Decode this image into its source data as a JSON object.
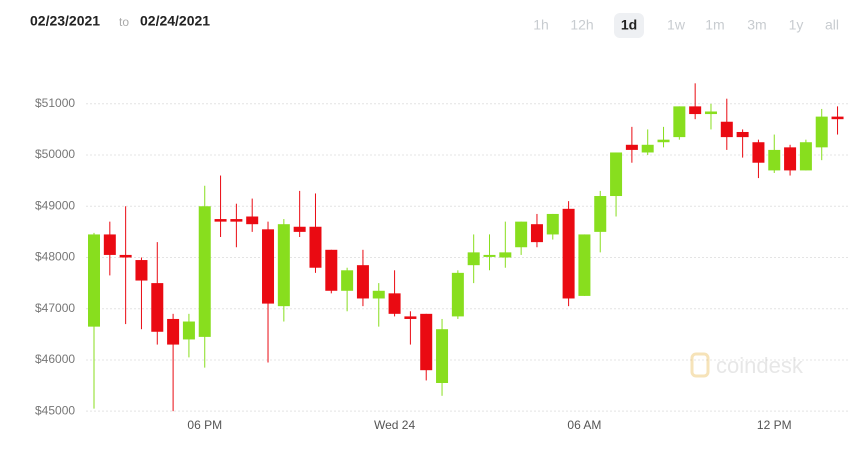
{
  "header": {
    "start_date": "02/23/2021",
    "separator": "to",
    "end_date": "02/24/2021",
    "ranges": [
      "1h",
      "12h",
      "1d",
      "1w",
      "1m",
      "3m",
      "1y",
      "all"
    ],
    "active_range": "1d"
  },
  "chart_data": {
    "type": "candlestick",
    "categories": [
      null,
      null,
      null,
      null,
      null,
      null,
      null,
      "06 PM",
      null,
      null,
      null,
      null,
      null,
      null,
      null,
      null,
      null,
      null,
      null,
      "Wed 24",
      null,
      null,
      null,
      null,
      null,
      null,
      null,
      null,
      null,
      null,
      null,
      "06 AM",
      null,
      null,
      null,
      null,
      null,
      null,
      null,
      null,
      null,
      null,
      null,
      "12 PM",
      null,
      null,
      null,
      null
    ],
    "open": [
      46650,
      48450,
      48050,
      47950,
      47500,
      46800,
      46400,
      46450,
      48750,
      48750,
      48800,
      48550,
      47050,
      48600,
      48600,
      48150,
      47350,
      47850,
      47200,
      47300,
      46850,
      46900,
      45550,
      46850,
      47850,
      48050,
      48000,
      48200,
      48650,
      48450,
      48950,
      47250,
      48500,
      49200,
      50200,
      50050,
      50250,
      50350,
      50950,
      50800,
      50650,
      50450,
      50250,
      49700,
      50150,
      49700,
      50150,
      50750
    ],
    "high": [
      48480,
      48700,
      49000,
      48000,
      48300,
      46900,
      46900,
      49400,
      49600,
      49050,
      49150,
      48700,
      48750,
      49300,
      49250,
      48150,
      47800,
      48150,
      47500,
      47750,
      46950,
      46900,
      46800,
      47750,
      48450,
      48450,
      48700,
      48700,
      48850,
      48850,
      49100,
      48450,
      49300,
      50050,
      50550,
      50500,
      50550,
      50950,
      51400,
      51000,
      51100,
      50500,
      50300,
      50400,
      50200,
      50300,
      50900,
      50950
    ],
    "low": [
      45050,
      47650,
      46700,
      46600,
      46300,
      45000,
      46050,
      45850,
      48400,
      48200,
      48500,
      45950,
      46750,
      48400,
      47700,
      47300,
      46950,
      47050,
      46650,
      46850,
      46300,
      45600,
      45300,
      46800,
      47500,
      47750,
      47800,
      48050,
      48200,
      48350,
      47050,
      47250,
      48100,
      48800,
      49850,
      50000,
      50150,
      50300,
      50700,
      50500,
      50100,
      49950,
      49550,
      49650,
      49600,
      49700,
      49900,
      50400
    ],
    "close": [
      48450,
      48050,
      48000,
      47550,
      46550,
      46300,
      46750,
      49000,
      48700,
      48700,
      48650,
      47100,
      48650,
      48500,
      47800,
      47350,
      47750,
      47200,
      47350,
      46900,
      46800,
      45800,
      46600,
      47700,
      48100,
      48050,
      48100,
      48700,
      48300,
      48850,
      47200,
      48450,
      49200,
      50050,
      50100,
      50200,
      50300,
      50950,
      50800,
      50850,
      50350,
      50350,
      49850,
      50100,
      49700,
      50250,
      50750,
      50700
    ],
    "up_color": "#88de1e",
    "down_color": "#ea0a12",
    "ylim": [
      44730,
      51660
    ],
    "yticks": [
      {
        "value": 45000,
        "label": "$45000"
      },
      {
        "value": 46000,
        "label": "$46000"
      },
      {
        "value": 47000,
        "label": "$47000"
      },
      {
        "value": 48000,
        "label": "$48000"
      },
      {
        "value": 49000,
        "label": "$49000"
      },
      {
        "value": 50000,
        "label": "$50000"
      },
      {
        "value": 51000,
        "label": "$51000"
      }
    ],
    "grid": true,
    "watermark": "coindesk"
  }
}
